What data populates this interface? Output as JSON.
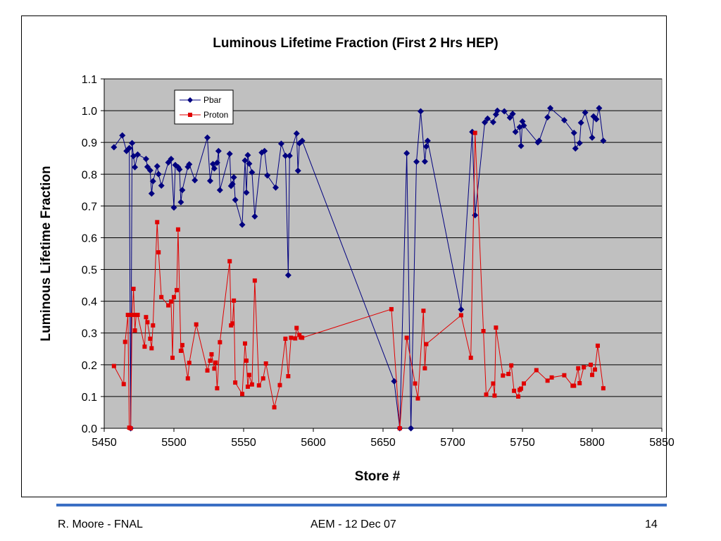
{
  "chart_data": {
    "type": "line",
    "title": "Luminous Lifetime Fraction (First 2 Hrs HEP)",
    "xlabel": "Store #",
    "ylabel": "Luminous Lifetime Fraction",
    "xlim": [
      5450,
      5850
    ],
    "ylim": [
      0.0,
      1.1
    ],
    "x_ticks": [
      5450,
      5500,
      5550,
      5600,
      5650,
      5700,
      5750,
      5800,
      5850
    ],
    "y_ticks": [
      0.0,
      0.1,
      0.2,
      0.3,
      0.4,
      0.5,
      0.6,
      0.7,
      0.8,
      0.9,
      1.0,
      1.1
    ],
    "y_tick_labels": [
      "0.0",
      "0.1",
      "0.2",
      "0.3",
      "0.4",
      "0.5",
      "0.6",
      "0.7",
      "0.8",
      "0.9",
      "1.0",
      "1.1"
    ],
    "grid": "horizontal",
    "legend_position": "top-left",
    "series": [
      {
        "name": "Pbar",
        "color": "#00007f",
        "marker": "diamond",
        "points": [
          [
            5457,
            0.885
          ],
          [
            5463,
            0.922
          ],
          [
            5466,
            0.873
          ],
          [
            5468,
            0.882
          ],
          [
            5469,
            0.0
          ],
          [
            5470,
            0.898
          ],
          [
            5471,
            0.857
          ],
          [
            5472,
            0.822
          ],
          [
            5474,
            0.862
          ],
          [
            5480,
            0.848
          ],
          [
            5481,
            0.823
          ],
          [
            5483,
            0.812
          ],
          [
            5484,
            0.739
          ],
          [
            5485,
            0.778
          ],
          [
            5488,
            0.825
          ],
          [
            5489,
            0.8
          ],
          [
            5491,
            0.764
          ],
          [
            5496,
            0.837
          ],
          [
            5498,
            0.848
          ],
          [
            5500,
            0.695
          ],
          [
            5501,
            0.829
          ],
          [
            5503,
            0.822
          ],
          [
            5504,
            0.815
          ],
          [
            5505,
            0.712
          ],
          [
            5506,
            0.75
          ],
          [
            5510,
            0.823
          ],
          [
            5511,
            0.831
          ],
          [
            5515,
            0.781
          ],
          [
            5524,
            0.915
          ],
          [
            5526,
            0.779
          ],
          [
            5528,
            0.832
          ],
          [
            5529,
            0.818
          ],
          [
            5531,
            0.836
          ],
          [
            5532,
            0.873
          ],
          [
            5533,
            0.75
          ],
          [
            5540,
            0.864
          ],
          [
            5541,
            0.763
          ],
          [
            5542,
            0.769
          ],
          [
            5543,
            0.79
          ],
          [
            5544,
            0.719
          ],
          [
            5549,
            0.641
          ],
          [
            5551,
            0.843
          ],
          [
            5552,
            0.742
          ],
          [
            5553,
            0.86
          ],
          [
            5554,
            0.833
          ],
          [
            5556,
            0.806
          ],
          [
            5558,
            0.667
          ],
          [
            5563,
            0.868
          ],
          [
            5565,
            0.873
          ],
          [
            5567,
            0.796
          ],
          [
            5573,
            0.758
          ],
          [
            5577,
            0.896
          ],
          [
            5580,
            0.858
          ],
          [
            5582,
            0.482
          ],
          [
            5583,
            0.858
          ],
          [
            5588,
            0.928
          ],
          [
            5589,
            0.811
          ],
          [
            5590,
            0.897
          ],
          [
            5592,
            0.905
          ],
          [
            5658,
            0.148
          ],
          [
            5662,
            0.0
          ],
          [
            5667,
            0.866
          ],
          [
            5670,
            0.0
          ],
          [
            5674,
            0.839
          ],
          [
            5677,
            0.998
          ],
          [
            5680,
            0.84
          ],
          [
            5681,
            0.887
          ],
          [
            5682,
            0.905
          ],
          [
            5706,
            0.374
          ],
          [
            5714,
            0.933
          ],
          [
            5716,
            0.671
          ],
          [
            5723,
            0.963
          ],
          [
            5725,
            0.975
          ],
          [
            5729,
            0.964
          ],
          [
            5731,
            0.988
          ],
          [
            5732,
            1.0
          ],
          [
            5737,
            0.998
          ],
          [
            5741,
            0.978
          ],
          [
            5743,
            0.99
          ],
          [
            5745,
            0.933
          ],
          [
            5748,
            0.948
          ],
          [
            5749,
            0.889
          ],
          [
            5750,
            0.966
          ],
          [
            5751,
            0.953
          ],
          [
            5761,
            0.9
          ],
          [
            5762,
            0.905
          ],
          [
            5768,
            0.979
          ],
          [
            5770,
            1.008
          ],
          [
            5780,
            0.97
          ],
          [
            5787,
            0.93
          ],
          [
            5788,
            0.881
          ],
          [
            5791,
            0.898
          ],
          [
            5792,
            0.962
          ],
          [
            5795,
            0.994
          ],
          [
            5800,
            0.915
          ],
          [
            5801,
            0.982
          ],
          [
            5803,
            0.973
          ],
          [
            5805,
            1.008
          ],
          [
            5808,
            0.905
          ]
        ]
      },
      {
        "name": "Proton",
        "color": "#e00000",
        "marker": "square",
        "points": [
          [
            5457,
            0.196
          ],
          [
            5464,
            0.139
          ],
          [
            5465,
            0.272
          ],
          [
            5467,
            0.357
          ],
          [
            5468,
            0.002
          ],
          [
            5469,
            0.0
          ],
          [
            5470,
            0.357
          ],
          [
            5471,
            0.439
          ],
          [
            5472,
            0.308
          ],
          [
            5473,
            0.357
          ],
          [
            5474,
            0.357
          ],
          [
            5479,
            0.257
          ],
          [
            5480,
            0.35
          ],
          [
            5481,
            0.334
          ],
          [
            5483,
            0.282
          ],
          [
            5484,
            0.252
          ],
          [
            5485,
            0.324
          ],
          [
            5488,
            0.649
          ],
          [
            5489,
            0.554
          ],
          [
            5491,
            0.413
          ],
          [
            5496,
            0.387
          ],
          [
            5498,
            0.399
          ],
          [
            5499,
            0.222
          ],
          [
            5500,
            0.413
          ],
          [
            5502,
            0.435
          ],
          [
            5503,
            0.626
          ],
          [
            5505,
            0.244
          ],
          [
            5506,
            0.262
          ],
          [
            5510,
            0.157
          ],
          [
            5511,
            0.206
          ],
          [
            5516,
            0.327
          ],
          [
            5524,
            0.182
          ],
          [
            5526,
            0.213
          ],
          [
            5527,
            0.233
          ],
          [
            5529,
            0.188
          ],
          [
            5530,
            0.207
          ],
          [
            5531,
            0.126
          ],
          [
            5533,
            0.271
          ],
          [
            5540,
            0.526
          ],
          [
            5541,
            0.324
          ],
          [
            5542,
            0.33
          ],
          [
            5543,
            0.402
          ],
          [
            5544,
            0.144
          ],
          [
            5549,
            0.108
          ],
          [
            5551,
            0.267
          ],
          [
            5552,
            0.213
          ],
          [
            5553,
            0.131
          ],
          [
            5554,
            0.168
          ],
          [
            5556,
            0.138
          ],
          [
            5558,
            0.465
          ],
          [
            5561,
            0.135
          ],
          [
            5564,
            0.157
          ],
          [
            5566,
            0.204
          ],
          [
            5572,
            0.066
          ],
          [
            5576,
            0.136
          ],
          [
            5580,
            0.282
          ],
          [
            5582,
            0.164
          ],
          [
            5584,
            0.285
          ],
          [
            5587,
            0.283
          ],
          [
            5588,
            0.316
          ],
          [
            5590,
            0.294
          ],
          [
            5591,
            0.286
          ],
          [
            5592,
            0.285
          ],
          [
            5656,
            0.375
          ],
          [
            5662,
            0.0
          ],
          [
            5667,
            0.285
          ],
          [
            5673,
            0.141
          ],
          [
            5675,
            0.094
          ],
          [
            5679,
            0.37
          ],
          [
            5680,
            0.189
          ],
          [
            5681,
            0.265
          ],
          [
            5706,
            0.356
          ],
          [
            5713,
            0.222
          ],
          [
            5716,
            0.93
          ],
          [
            5722,
            0.306
          ],
          [
            5724,
            0.106
          ],
          [
            5729,
            0.141
          ],
          [
            5730,
            0.103
          ],
          [
            5731,
            0.317
          ],
          [
            5736,
            0.166
          ],
          [
            5740,
            0.171
          ],
          [
            5742,
            0.198
          ],
          [
            5744,
            0.118
          ],
          [
            5747,
            0.1
          ],
          [
            5748,
            0.121
          ],
          [
            5749,
            0.125
          ],
          [
            5751,
            0.141
          ],
          [
            5760,
            0.183
          ],
          [
            5768,
            0.15
          ],
          [
            5771,
            0.16
          ],
          [
            5780,
            0.167
          ],
          [
            5786,
            0.134
          ],
          [
            5787,
            0.134
          ],
          [
            5790,
            0.189
          ],
          [
            5791,
            0.142
          ],
          [
            5794,
            0.192
          ],
          [
            5799,
            0.2
          ],
          [
            5800,
            0.168
          ],
          [
            5802,
            0.185
          ],
          [
            5804,
            0.26
          ],
          [
            5808,
            0.126
          ]
        ]
      }
    ]
  },
  "footer": {
    "author": "R. Moore - FNAL",
    "event": "AEM - 12 Dec 07",
    "page": "14"
  }
}
